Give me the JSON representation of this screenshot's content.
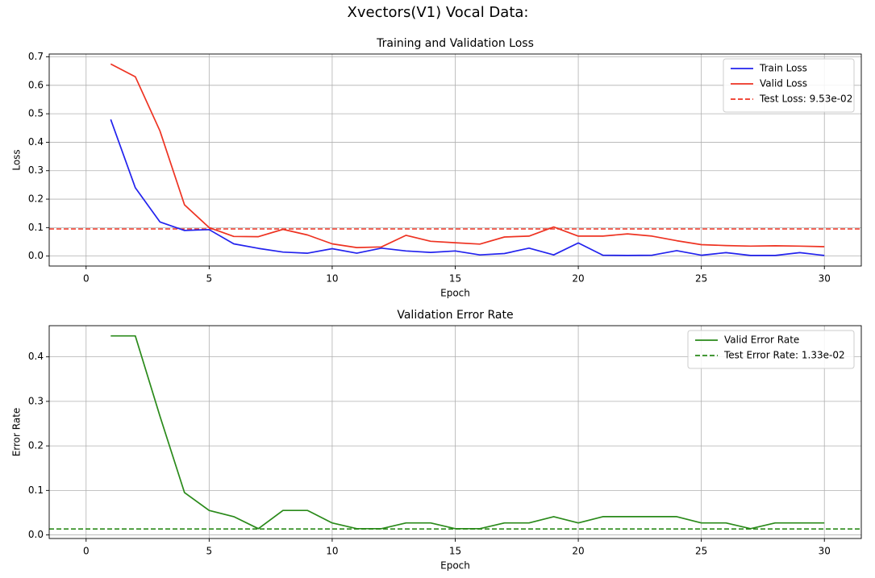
{
  "suptitle": "Xvectors(V1) Vocal Data:",
  "colors": {
    "train": "#2222ee",
    "valid": "#ee3322",
    "error": "#2a8a1a",
    "grid": "#b0b0b0"
  },
  "chart_data": [
    {
      "type": "line",
      "title": "Training and Validation Loss",
      "xlabel": "Epoch",
      "ylabel": "Loss",
      "xlim": [
        -1.5,
        31.5
      ],
      "ylim": [
        -0.035,
        0.71
      ],
      "xticks": [
        0,
        5,
        10,
        15,
        20,
        25,
        30
      ],
      "yticks": [
        0.0,
        0.1,
        0.2,
        0.3,
        0.4,
        0.5,
        0.6,
        0.7
      ],
      "ytick_decimals": 1,
      "grid": true,
      "legend_position": "top-right",
      "x": [
        1,
        2,
        3,
        4,
        5,
        6,
        7,
        8,
        9,
        10,
        11,
        12,
        13,
        14,
        15,
        16,
        17,
        18,
        19,
        20,
        21,
        22,
        23,
        24,
        25,
        26,
        27,
        28,
        29,
        30
      ],
      "series": [
        {
          "name": "Train Loss",
          "color": "#2222ee",
          "values": [
            0.48,
            0.24,
            0.12,
            0.09,
            0.093,
            0.043,
            0.027,
            0.014,
            0.01,
            0.026,
            0.01,
            0.028,
            0.018,
            0.013,
            0.018,
            0.004,
            0.009,
            0.028,
            0.004,
            0.046,
            0.003,
            0.002,
            0.003,
            0.019,
            0.003,
            0.012,
            0.002,
            0.002,
            0.012,
            0.002
          ]
        },
        {
          "name": "Valid Loss",
          "color": "#ee3322",
          "values": [
            0.675,
            0.63,
            0.44,
            0.18,
            0.1,
            0.069,
            0.068,
            0.094,
            0.074,
            0.043,
            0.03,
            0.032,
            0.073,
            0.052,
            0.047,
            0.042,
            0.067,
            0.07,
            0.102,
            0.07,
            0.07,
            0.078,
            0.07,
            0.054,
            0.04,
            0.037,
            0.035,
            0.036,
            0.035,
            0.033
          ]
        }
      ],
      "hlines": [
        {
          "name": "Test Loss: 9.53e-02",
          "color": "#ee3322",
          "value": 0.0953
        }
      ]
    },
    {
      "type": "line",
      "title": "Validation Error Rate",
      "xlabel": "Epoch",
      "ylabel": "Error Rate",
      "xlim": [
        -1.5,
        31.5
      ],
      "ylim": [
        -0.008,
        0.47
      ],
      "xticks": [
        0,
        5,
        10,
        15,
        20,
        25,
        30
      ],
      "yticks": [
        0.0,
        0.1,
        0.2,
        0.3,
        0.4
      ],
      "ytick_decimals": 1,
      "grid": true,
      "legend_position": "top-right",
      "x": [
        1,
        2,
        3,
        4,
        5,
        6,
        7,
        8,
        9,
        10,
        11,
        12,
        13,
        14,
        15,
        16,
        17,
        18,
        19,
        20,
        21,
        22,
        23,
        24,
        25,
        26,
        27,
        28,
        29,
        30
      ],
      "series": [
        {
          "name": "Valid Error Rate",
          "color": "#2a8a1a",
          "values": [
            0.447,
            0.447,
            0.267,
            0.095,
            0.055,
            0.041,
            0.014,
            0.055,
            0.055,
            0.027,
            0.014,
            0.014,
            0.027,
            0.027,
            0.014,
            0.014,
            0.027,
            0.027,
            0.041,
            0.027,
            0.041,
            0.041,
            0.041,
            0.041,
            0.027,
            0.027,
            0.014,
            0.027,
            0.027,
            0.027
          ]
        }
      ],
      "hlines": [
        {
          "name": "Test Error Rate: 1.33e-02",
          "color": "#2a8a1a",
          "value": 0.0133
        }
      ]
    }
  ]
}
